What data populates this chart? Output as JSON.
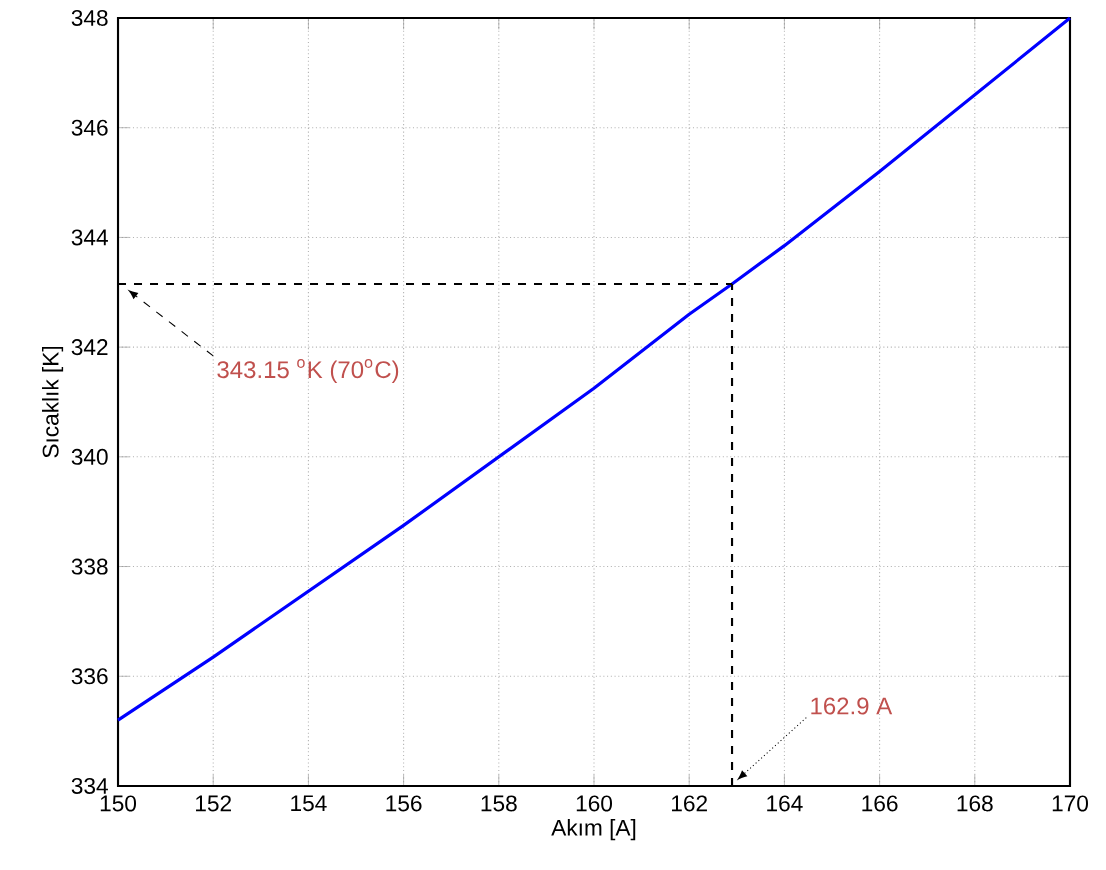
{
  "chart_data": {
    "type": "line",
    "xlabel": "Akım [A]",
    "ylabel": "Sıcaklık [K]",
    "x": [
      150,
      152,
      154,
      156,
      158,
      160,
      162,
      162.9,
      164,
      166,
      168,
      170
    ],
    "series": [
      {
        "color": "#0000ff",
        "values": [
          335.2,
          336.35,
          337.55,
          338.75,
          340.0,
          341.25,
          342.6,
          343.15,
          343.85,
          345.2,
          346.6,
          348.0
        ]
      }
    ],
    "xlim": [
      150,
      170
    ],
    "ylim": [
      334,
      348
    ],
    "xticks": [
      150,
      152,
      154,
      156,
      158,
      160,
      162,
      164,
      166,
      168,
      170
    ],
    "yticks": [
      334,
      336,
      338,
      340,
      342,
      344,
      346,
      348
    ],
    "grid": true,
    "marker": "none",
    "line_style": "solid",
    "ref_lines": [
      {
        "axis": "y",
        "value": 343.15,
        "color": "#000000",
        "line_style": "dashed"
      },
      {
        "axis": "x",
        "value": 162.9,
        "color": "#000000",
        "line_style": "dashed"
      }
    ],
    "annotations": [
      {
        "text": "343.15 $^{o}$K (70$^{o}$C)",
        "x": 150.2,
        "y": 343.05
      },
      {
        "text": "162.9 A",
        "x": 163.0,
        "y": 334.1
      }
    ]
  }
}
